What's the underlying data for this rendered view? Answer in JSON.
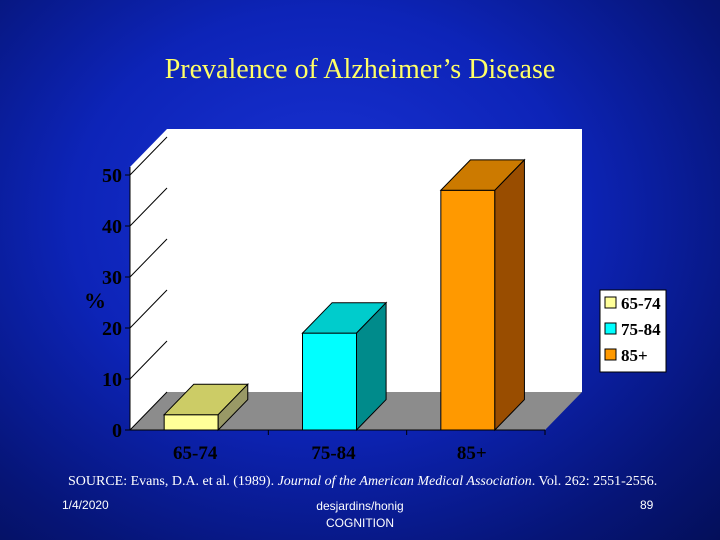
{
  "slide": {
    "title": "Prevalence of Alzheimer’s Disease",
    "source_prefix": "SOURCE:  Evans, D.A. et al. (1989). ",
    "source_journal": "Journal of the American Medical Association",
    "source_suffix": ". Vol. 262: 2551-2556.",
    "footer_date": "1/4/2020",
    "footer_center_1": "desjardins/honig",
    "footer_center_2": "COGNITION",
    "page_number": "89"
  },
  "chart_data": {
    "type": "bar",
    "categories": [
      "65-74",
      "75-84",
      "85+"
    ],
    "values": [
      3,
      19,
      47
    ],
    "ylabel": "%",
    "ylim": [
      0,
      50
    ],
    "yticks": [
      0,
      10,
      20,
      30,
      40,
      50
    ],
    "legend_position": "right",
    "colors": {
      "bar_front": [
        "#ffff99",
        "#00ffff",
        "#ff9900"
      ],
      "bar_top": [
        "#cccc66",
        "#00cccc",
        "#cc7a00"
      ],
      "bar_side": [
        "#999966",
        "#008b8b",
        "#994d00"
      ],
      "wall": "#ffffff",
      "floor": "#8c8c8c"
    },
    "legend": [
      {
        "label": "65-74",
        "color": "#ffff99"
      },
      {
        "label": "75-84",
        "color": "#00ffff"
      },
      {
        "label": "85+",
        "color": "#ff9900"
      }
    ]
  }
}
